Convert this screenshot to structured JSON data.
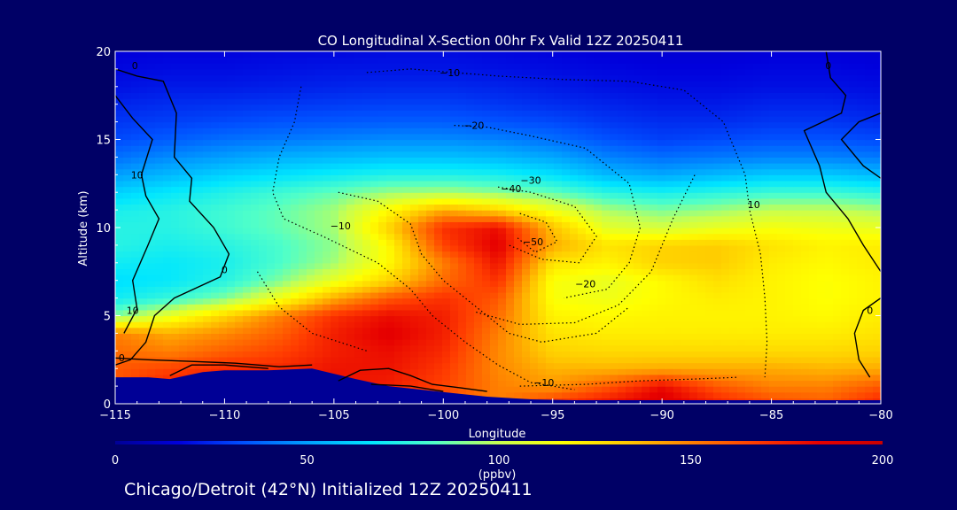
{
  "chart_data": {
    "type": "heatmap",
    "title": "CO Longitudinal X-Section 00hr  Fx Valid 12Z 20250411",
    "xlabel": "Longitude",
    "ylabel": "Altitude (km)",
    "xlim": [
      -115,
      -80
    ],
    "ylim": [
      0,
      20
    ],
    "x_ticks": [
      -115,
      -110,
      -105,
      -100,
      -95,
      -90,
      -85,
      -80
    ],
    "x_tick_labels": [
      "−115",
      "−110",
      "−105",
      "−100",
      "−95",
      "−90",
      "−85",
      "−80"
    ],
    "y_ticks": [
      0,
      5,
      10,
      15,
      20
    ],
    "y_tick_labels": [
      "0",
      "5",
      "10",
      "15",
      "20"
    ],
    "colorbar": {
      "min": 0,
      "max": 200,
      "ticks": [
        0,
        50,
        100,
        150,
        200
      ],
      "tick_labels": [
        "0",
        "50",
        "100",
        "150",
        "200"
      ],
      "unit": "(ppbv)",
      "colors": [
        "#000096",
        "#0000dc",
        "#0050ff",
        "#00a0ff",
        "#00e6ff",
        "#50ffc8",
        "#c8ff50",
        "#ffff00",
        "#ffc800",
        "#ff8000",
        "#ff3c00",
        "#e60000",
        "#c80000"
      ]
    },
    "field": {
      "description_units": "ppbv CO",
      "x": [
        -115,
        -112.5,
        -110,
        -107.5,
        -105,
        -102.5,
        -100,
        -97.5,
        -95,
        -92.5,
        -90,
        -87.5,
        -85,
        -82.5,
        -80
      ],
      "y": [
        0,
        1,
        2,
        3,
        4,
        5,
        6,
        7,
        8,
        9,
        10,
        11,
        12,
        13,
        14,
        15,
        16,
        17,
        18,
        19,
        20
      ],
      "values": [
        [
          150,
          160,
          165,
          165,
          170,
          165,
          160,
          150,
          170,
          180,
          190,
          175,
          165,
          160,
          175
        ],
        [
          160,
          175,
          178,
          175,
          178,
          175,
          165,
          150,
          145,
          160,
          180,
          160,
          150,
          150,
          160
        ],
        [
          160,
          165,
          172,
          172,
          178,
          178,
          168,
          148,
          138,
          138,
          140,
          140,
          140,
          138,
          140
        ],
        [
          155,
          150,
          158,
          165,
          175,
          180,
          172,
          148,
          130,
          128,
          128,
          128,
          128,
          128,
          130
        ],
        [
          150,
          140,
          148,
          158,
          175,
          185,
          175,
          150,
          125,
          122,
          122,
          122,
          122,
          122,
          125
        ],
        [
          90,
          110,
          130,
          150,
          170,
          180,
          175,
          155,
          120,
          118,
          120,
          120,
          120,
          118,
          122
        ],
        [
          70,
          78,
          90,
          112,
          140,
          160,
          170,
          160,
          115,
          112,
          118,
          122,
          120,
          116,
          120
        ],
        [
          65,
          68,
          75,
          90,
          110,
          130,
          155,
          170,
          115,
          110,
          118,
          126,
          120,
          116,
          120
        ],
        [
          70,
          68,
          72,
          82,
          95,
          118,
          150,
          178,
          125,
          120,
          130,
          132,
          122,
          118,
          122
        ],
        [
          75,
          72,
          75,
          82,
          92,
          118,
          165,
          185,
          140,
          125,
          130,
          132,
          125,
          120,
          122
        ],
        [
          75,
          75,
          80,
          86,
          95,
          130,
          170,
          180,
          135,
          108,
          104,
          110,
          114,
          112,
          110
        ],
        [
          72,
          75,
          80,
          86,
          95,
          118,
          140,
          130,
          112,
          96,
          90,
          94,
          100,
          100,
          96
        ],
        [
          62,
          68,
          74,
          80,
          86,
          94,
          96,
          92,
          86,
          76,
          72,
          76,
          80,
          80,
          76
        ],
        [
          50,
          56,
          62,
          66,
          70,
          74,
          74,
          72,
          66,
          56,
          52,
          56,
          60,
          60,
          56
        ],
        [
          40,
          46,
          50,
          54,
          56,
          58,
          58,
          56,
          52,
          44,
          40,
          42,
          44,
          44,
          42
        ],
        [
          32,
          36,
          40,
          42,
          44,
          46,
          46,
          44,
          40,
          34,
          30,
          32,
          34,
          34,
          32
        ],
        [
          28,
          30,
          32,
          34,
          35,
          36,
          36,
          34,
          32,
          28,
          26,
          26,
          28,
          28,
          26
        ],
        [
          24,
          26,
          27,
          28,
          29,
          30,
          30,
          28,
          26,
          24,
          22,
          22,
          24,
          24,
          22
        ],
        [
          20,
          22,
          22,
          23,
          24,
          25,
          25,
          24,
          22,
          20,
          19,
          19,
          20,
          20,
          19
        ],
        [
          18,
          19,
          19,
          20,
          21,
          21,
          21,
          20,
          19,
          18,
          17,
          17,
          18,
          18,
          17
        ],
        [
          16,
          17,
          17,
          18,
          18,
          19,
          19,
          18,
          17,
          16,
          15,
          15,
          16,
          16,
          15
        ]
      ]
    },
    "terrain_km": [
      [
        -115,
        1.5
      ],
      [
        -113.5,
        1.5
      ],
      [
        -112.5,
        1.4
      ],
      [
        -111,
        1.8
      ],
      [
        -110,
        1.9
      ],
      [
        -108,
        1.9
      ],
      [
        -106,
        2.0
      ],
      [
        -104,
        1.4
      ],
      [
        -102.5,
        1.0
      ],
      [
        -101,
        0.8
      ],
      [
        -99.5,
        0.6
      ],
      [
        -98,
        0.4
      ],
      [
        -96,
        0.25
      ],
      [
        -94,
        0.2
      ],
      [
        -90,
        0.2
      ],
      [
        -85,
        0.2
      ],
      [
        -80,
        0.2
      ]
    ],
    "contours": [
      {
        "label": "−10",
        "x": -99.7,
        "y": 18.6,
        "style": "dotted"
      },
      {
        "label": "−20",
        "x": -98.6,
        "y": 15.6,
        "style": "dotted"
      },
      {
        "label": "−30",
        "x": -96.0,
        "y": 12.5,
        "style": "dotted"
      },
      {
        "label": "−40",
        "x": -96.9,
        "y": 12.0,
        "style": "dotted"
      },
      {
        "label": "−50",
        "x": -95.9,
        "y": 9.0,
        "style": "dotted"
      },
      {
        "label": "−10",
        "x": -104.7,
        "y": 9.9,
        "style": "dotted"
      },
      {
        "label": "−20",
        "x": -93.5,
        "y": 6.6,
        "style": "dotted"
      },
      {
        "label": "−10",
        "x": -95.4,
        "y": 1.0,
        "style": "dotted"
      },
      {
        "label": "10",
        "x": -85.8,
        "y": 11.1,
        "style": "solid"
      },
      {
        "label": "0",
        "x": -110.0,
        "y": 7.4,
        "style": "solid"
      },
      {
        "label": "10",
        "x": -114.2,
        "y": 5.1,
        "style": "solid"
      },
      {
        "label": "10",
        "x": -114.0,
        "y": 12.8,
        "style": "solid"
      },
      {
        "label": "0",
        "x": -114.1,
        "y": 19.0,
        "style": "solid"
      },
      {
        "label": "0",
        "x": -114.7,
        "y": 2.4,
        "style": "solid"
      },
      {
        "label": "0",
        "x": -80.5,
        "y": 5.1,
        "style": "solid"
      },
      {
        "label": "0",
        "x": -82.4,
        "y": 19.0,
        "style": "solid"
      }
    ]
  },
  "colorbar_unit": "(ppbv)",
  "caption": "Chicago/Detroit (42°N) Initialized 12Z 20250411"
}
